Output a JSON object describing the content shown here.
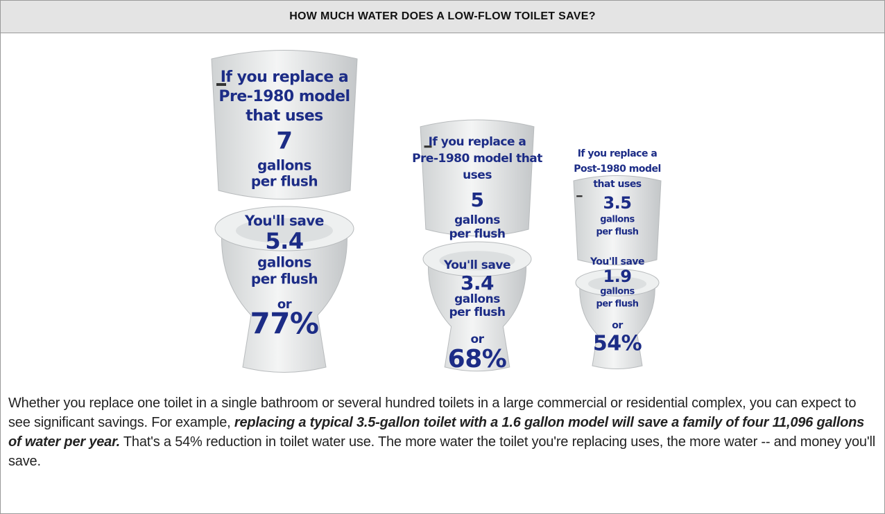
{
  "header": {
    "title": "HOW MUCH WATER DOES A LOW-FLOW TOILET SAVE?"
  },
  "panels": [
    {
      "intro": [
        "If you replace a",
        "Pre-1980 model",
        "that uses"
      ],
      "usage": "7",
      "usage_unit": [
        "gallons",
        "per flush"
      ],
      "savings_label": "You'll save",
      "savings": "5.4",
      "savings_unit": [
        "gallons",
        "per flush"
      ],
      "or": "or",
      "percent": "77%"
    },
    {
      "intro": [
        "If you replace a",
        "Pre-1980 model that",
        "uses"
      ],
      "usage": "5",
      "usage_unit": [
        "gallons",
        "per flush"
      ],
      "savings_label": "You'll save",
      "savings": "3.4",
      "savings_unit": [
        "gallons",
        "per flush"
      ],
      "or": "or",
      "percent": "68%"
    },
    {
      "intro": [
        "If you replace a",
        "Post-1980 model",
        "that uses"
      ],
      "usage": "3.5",
      "usage_unit": [
        "gallons",
        "per flush"
      ],
      "savings_label": "You'll save",
      "savings": "1.9",
      "savings_unit": [
        "gallons",
        "per flush"
      ],
      "or": "or",
      "percent": "54%"
    }
  ],
  "paragraph": {
    "before": "Whether you replace one toilet in a single bathroom or several hundred toilets in a large commercial or residential complex, you can expect to see significant savings. For example, ",
    "emphasis": "replacing a typical 3.5-gallon toilet with a 1.6 gallon model will save a family of four 11,096 gallons of water per year.",
    "after": " That's a 54% reduction in toilet water use. The more water the toilet you're replacing uses, the more water -- and money you'll save."
  }
}
